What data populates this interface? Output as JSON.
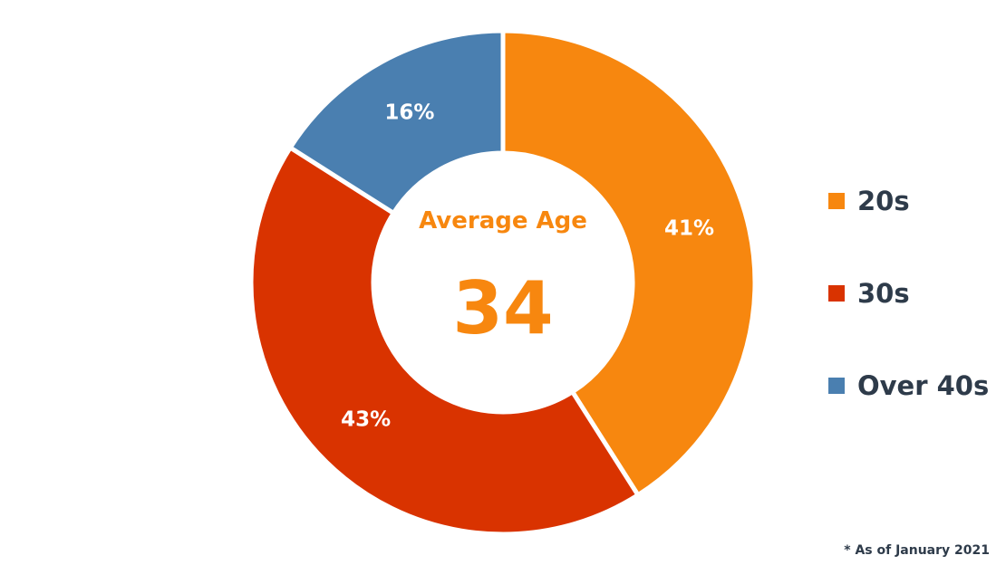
{
  "chart_data": {
    "type": "pie",
    "categories": [
      "20s",
      "30s",
      "Over 40s"
    ],
    "values": [
      41,
      43,
      16
    ],
    "value_labels": [
      "41%",
      "43%",
      "16%"
    ],
    "colors": [
      "#F7870F",
      "#D93300",
      "#4A7FB0"
    ],
    "legend_position": "right",
    "donut": true
  },
  "center": {
    "title": "Average Age",
    "value": "34"
  },
  "footnote": "* As of January 2021"
}
